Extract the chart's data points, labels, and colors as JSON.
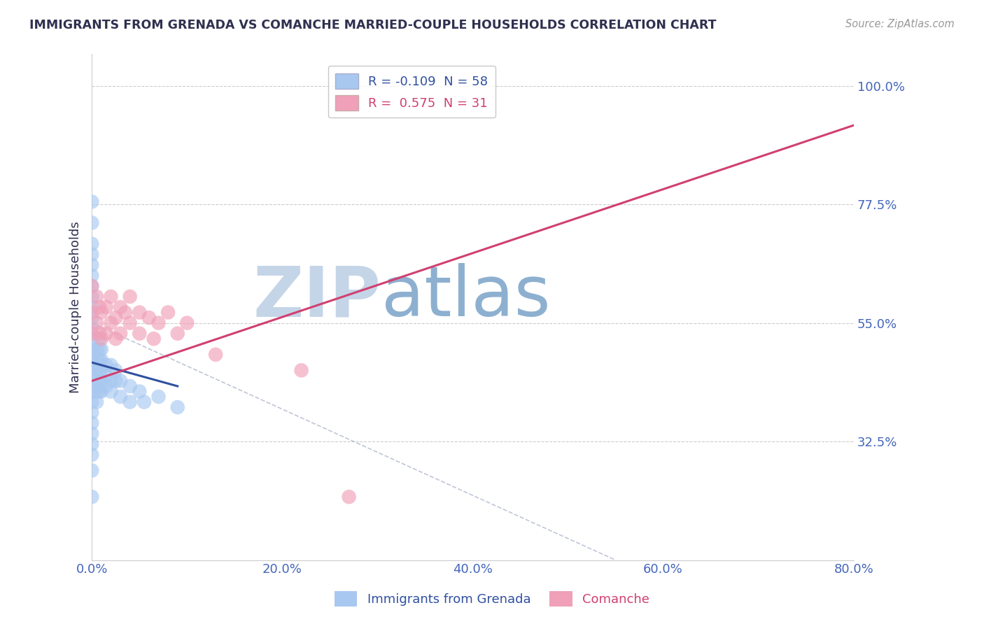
{
  "title": "IMMIGRANTS FROM GRENADA VS COMANCHE MARRIED-COUPLE HOUSEHOLDS CORRELATION CHART",
  "source_text": "Source: ZipAtlas.com",
  "ylabel": "Married-couple Households",
  "r_values": [
    -0.109,
    0.575
  ],
  "n_values": [
    58,
    31
  ],
  "xlim": [
    0.0,
    0.8
  ],
  "ylim": [
    0.1,
    1.06
  ],
  "yticks": [
    0.325,
    0.55,
    0.775,
    1.0
  ],
  "ytick_labels": [
    "32.5%",
    "55.0%",
    "77.5%",
    "100.0%"
  ],
  "xticks": [
    0.0,
    0.2,
    0.4,
    0.6,
    0.8
  ],
  "xtick_labels": [
    "0.0%",
    "20.0%",
    "40.0%",
    "60.0%",
    "80.0%"
  ],
  "blue_color": "#a8c8f0",
  "pink_color": "#f0a0b8",
  "blue_line_color": "#3050a0",
  "pink_line_color": "#d04070",
  "title_color": "#303050",
  "axis_color": "#4466bb",
  "watermark_zip_color": "#c5d5e8",
  "watermark_atlas_color": "#8eb0d0",
  "grid_color": "#cccccc",
  "blue_scatter_x": [
    0.0,
    0.0,
    0.0,
    0.0,
    0.0,
    0.0,
    0.0,
    0.0,
    0.0,
    0.0,
    0.0,
    0.0,
    0.0,
    0.0,
    0.0,
    0.0,
    0.0,
    0.0,
    0.0,
    0.0,
    0.0,
    0.0,
    0.0,
    0.0,
    0.0,
    0.005,
    0.005,
    0.005,
    0.005,
    0.005,
    0.005,
    0.008,
    0.008,
    0.008,
    0.008,
    0.008,
    0.008,
    0.01,
    0.01,
    0.01,
    0.01,
    0.01,
    0.015,
    0.015,
    0.015,
    0.02,
    0.02,
    0.02,
    0.025,
    0.025,
    0.03,
    0.03,
    0.04,
    0.04,
    0.05,
    0.055,
    0.07,
    0.09
  ],
  "blue_scatter_y": [
    0.78,
    0.74,
    0.7,
    0.68,
    0.66,
    0.64,
    0.62,
    0.6,
    0.58,
    0.56,
    0.54,
    0.52,
    0.5,
    0.48,
    0.46,
    0.44,
    0.42,
    0.4,
    0.38,
    0.36,
    0.34,
    0.32,
    0.3,
    0.27,
    0.22,
    0.5,
    0.48,
    0.46,
    0.44,
    0.42,
    0.4,
    0.52,
    0.5,
    0.48,
    0.46,
    0.44,
    0.42,
    0.5,
    0.48,
    0.46,
    0.44,
    0.42,
    0.47,
    0.45,
    0.43,
    0.47,
    0.44,
    0.42,
    0.46,
    0.44,
    0.44,
    0.41,
    0.43,
    0.4,
    0.42,
    0.4,
    0.41,
    0.39
  ],
  "pink_scatter_x": [
    0.0,
    0.0,
    0.0,
    0.005,
    0.005,
    0.008,
    0.008,
    0.01,
    0.01,
    0.015,
    0.015,
    0.02,
    0.02,
    0.025,
    0.025,
    0.03,
    0.03,
    0.035,
    0.04,
    0.04,
    0.05,
    0.05,
    0.06,
    0.065,
    0.07,
    0.08,
    0.09,
    0.1,
    0.13,
    0.22,
    0.27
  ],
  "pink_scatter_y": [
    0.62,
    0.57,
    0.53,
    0.6,
    0.55,
    0.58,
    0.53,
    0.57,
    0.52,
    0.58,
    0.53,
    0.6,
    0.55,
    0.56,
    0.52,
    0.58,
    0.53,
    0.57,
    0.6,
    0.55,
    0.57,
    0.53,
    0.56,
    0.52,
    0.55,
    0.57,
    0.53,
    0.55,
    0.49,
    0.46,
    0.22
  ],
  "blue_line_x": [
    0.0,
    0.09
  ],
  "blue_line_y": [
    0.475,
    0.43
  ],
  "pink_line_x": [
    0.0,
    0.8
  ],
  "pink_line_y": [
    0.44,
    0.925
  ],
  "diag_line_x": [
    0.0,
    0.55
  ],
  "diag_line_y": [
    0.55,
    0.1
  ]
}
